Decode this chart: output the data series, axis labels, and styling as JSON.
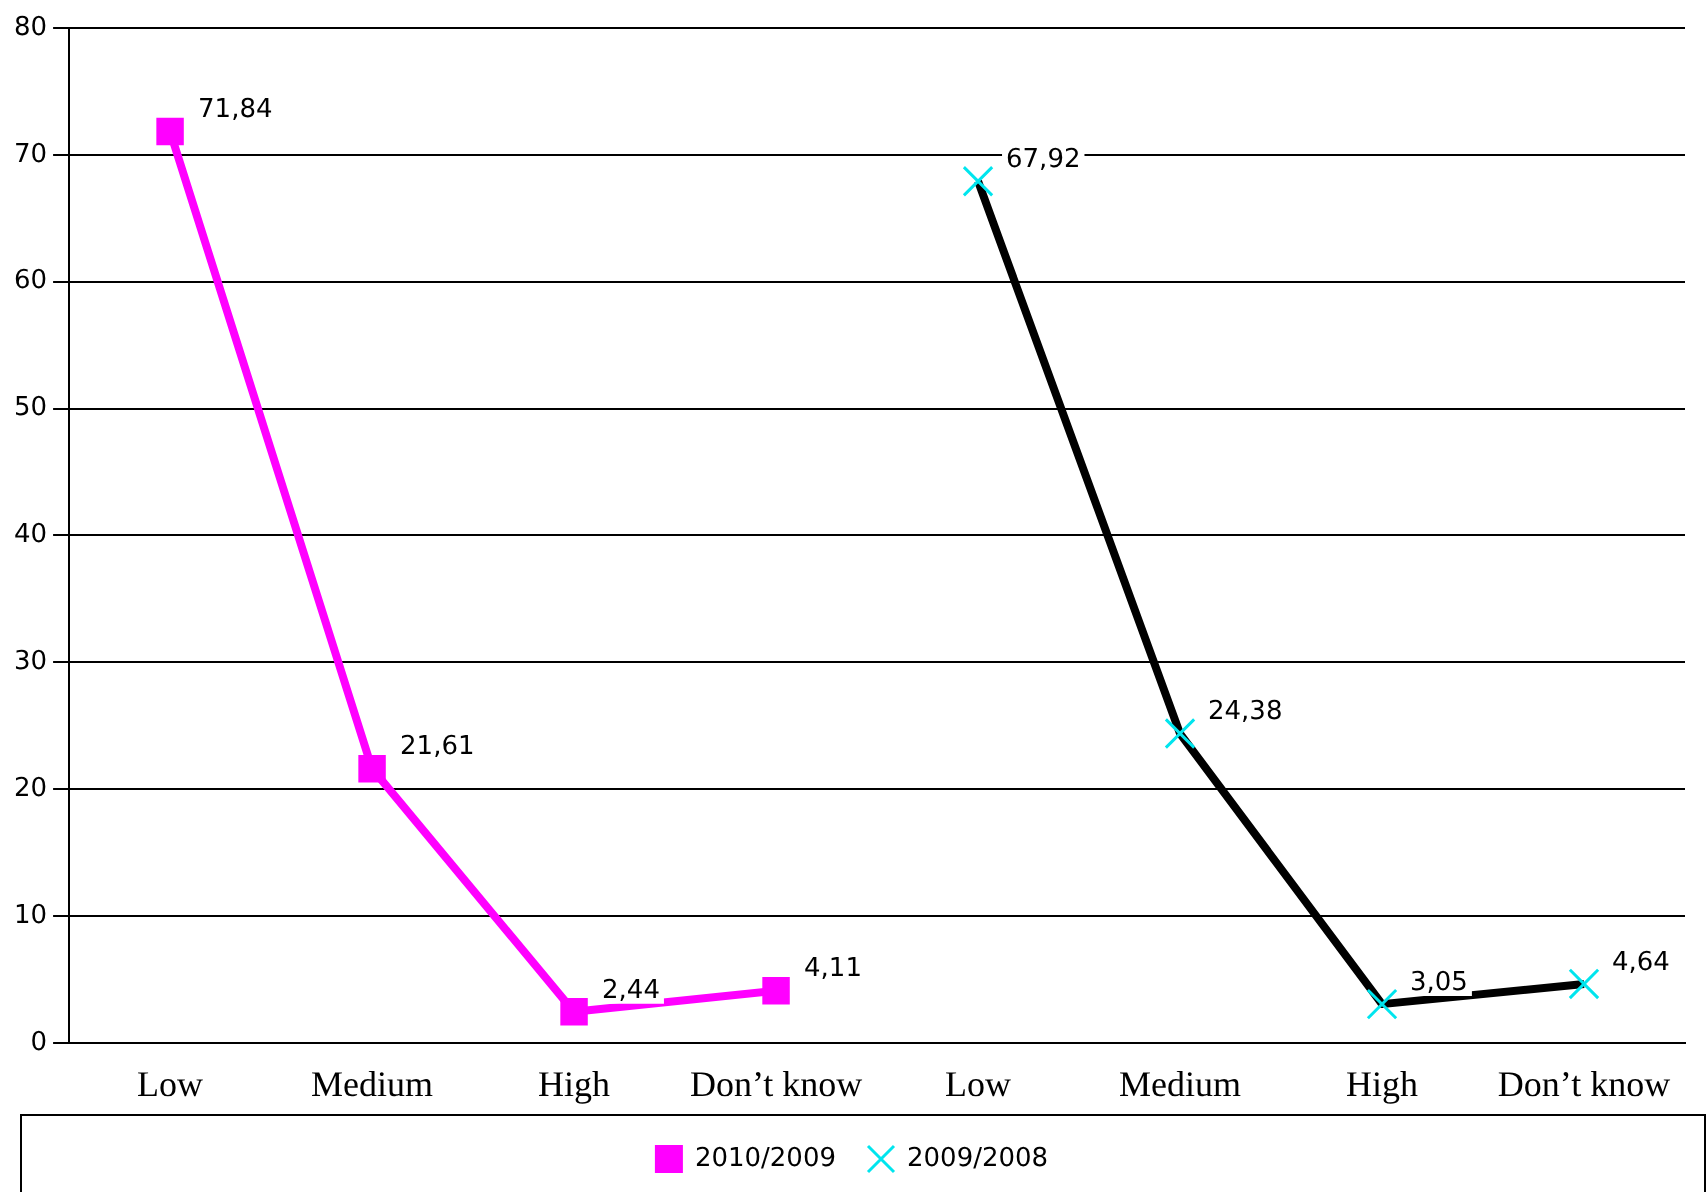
{
  "chart_data": {
    "type": "line",
    "categories": [
      "Low",
      "Medium",
      "High",
      "Don’t know",
      "Low",
      "Medium",
      "High",
      "Don’t know"
    ],
    "series": [
      {
        "name": "2010/2009",
        "color": "#ff00ff",
        "marker": "square",
        "values": [
          71.84,
          21.61,
          2.44,
          4.11,
          null,
          null,
          null,
          null
        ],
        "value_labels": [
          "71,84",
          "21,61",
          "2,44",
          "4,11",
          null,
          null,
          null,
          null
        ]
      },
      {
        "name": "2009/2008",
        "color": "#000000",
        "marker": "cross",
        "values": [
          null,
          null,
          null,
          null,
          67.92,
          24.38,
          3.05,
          4.64
        ],
        "value_labels": [
          null,
          null,
          null,
          null,
          "67,92",
          "24,38",
          "3,05",
          "4,64"
        ]
      }
    ],
    "ylim": [
      0,
      80
    ],
    "yticks": [
      0,
      10,
      20,
      30,
      40,
      50,
      60,
      70,
      80
    ],
    "grid": "y",
    "legend": "bottom"
  }
}
